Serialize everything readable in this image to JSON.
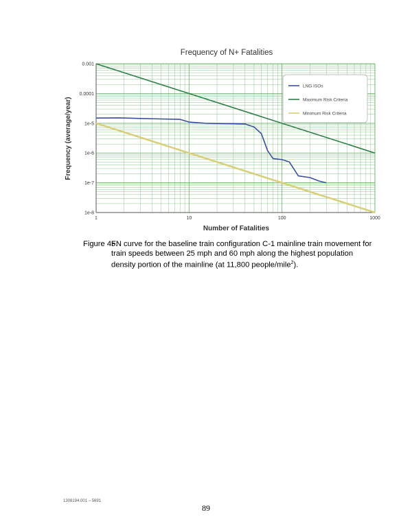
{
  "chart_data": {
    "type": "line",
    "title": "Frequency of N+ Fatalities",
    "xlabel": "Number of Fatalities",
    "ylabel": "Frequency (average/year)",
    "x_scale": "log",
    "y_scale": "log",
    "xlim": [
      1,
      1000
    ],
    "ylim": [
      1e-08,
      0.001
    ],
    "x_ticks": [
      "1",
      "10",
      "100",
      "1000"
    ],
    "y_ticks": [
      "0.001",
      "0.0001",
      "1e-5",
      "1e-6",
      "1e-7",
      "1e-8"
    ],
    "grid": true,
    "legend_position": "top-right",
    "series": [
      {
        "name": "LNG ISOs",
        "color": "#3b4fa0",
        "x": [
          1,
          1.8,
          3,
          5,
          8,
          10,
          15,
          20,
          30,
          40,
          50,
          60,
          70,
          80,
          100,
          120,
          150,
          200,
          250,
          300
        ],
        "y": [
          1.5e-05,
          1.52e-05,
          1.45e-05,
          1.4e-05,
          1.35e-05,
          1.1e-05,
          1e-05,
          9.8e-06,
          9.7e-06,
          9.5e-06,
          7.5e-06,
          4.5e-06,
          1.2e-06,
          6.5e-07,
          6e-07,
          5e-07,
          1.7e-07,
          1.5e-07,
          1.15e-07,
          1e-07
        ]
      },
      {
        "name": "Maximum Risk Criteria",
        "color": "#2e7d46",
        "x": [
          1,
          1000
        ],
        "y": [
          0.001,
          1e-06
        ]
      },
      {
        "name": "Minimum Risk Criteria",
        "color": "#d9cf7a",
        "x": [
          1,
          1000
        ],
        "y": [
          1e-05,
          1e-08
        ]
      }
    ]
  },
  "caption": {
    "label": "Figure 45.",
    "text_before_sup": "FN curve for the baseline train configuration C-1 mainline train movement for train speeds between 25 mph and 60 mph along the highest population density portion of the mainline (at 11,800 people/mile",
    "sup": "2",
    "text_after_sup": ")."
  },
  "footer": {
    "doc_id": "1308194.001 – 5691",
    "page_number": "89"
  }
}
